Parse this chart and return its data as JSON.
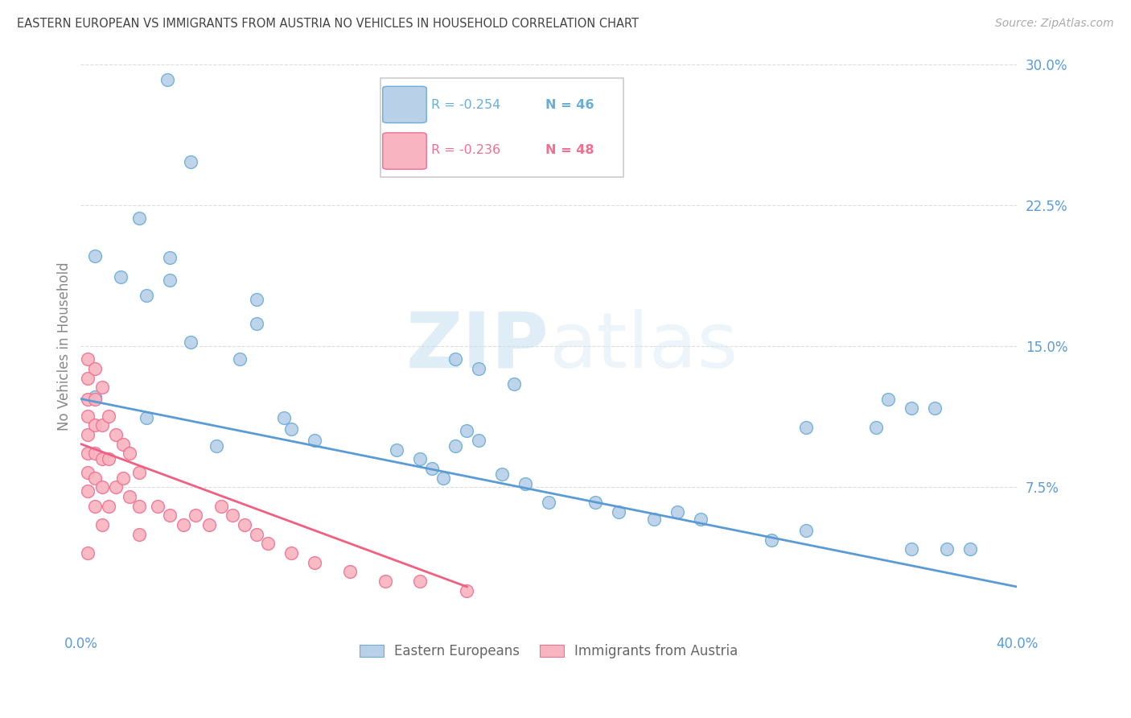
{
  "title": "EASTERN EUROPEAN VS IMMIGRANTS FROM AUSTRIA NO VEHICLES IN HOUSEHOLD CORRELATION CHART",
  "source": "Source: ZipAtlas.com",
  "ylabel": "No Vehicles in Household",
  "xlim": [
    0.0,
    0.4
  ],
  "ylim": [
    0.0,
    0.3
  ],
  "ytick_vals": [
    0.0,
    0.075,
    0.15,
    0.225,
    0.3
  ],
  "ytick_labels": [
    "",
    "7.5%",
    "15.0%",
    "22.5%",
    "30.0%"
  ],
  "xtick_vals": [
    0.0,
    0.1,
    0.2,
    0.3,
    0.4
  ],
  "xtick_labels": [
    "0.0%",
    "",
    "",
    "",
    "40.0%"
  ],
  "watermark_zip": "ZIP",
  "watermark_atlas": "atlas",
  "legend_blue_r": "R = -0.254",
  "legend_blue_n": "N = 46",
  "legend_pink_r": "R = -0.236",
  "legend_pink_n": "N = 48",
  "legend_blue_label": "Eastern Europeans",
  "legend_pink_label": "Immigrants from Austria",
  "blue_face": "#b8d0e8",
  "blue_edge": "#6aaed6",
  "pink_face": "#f8b4c0",
  "pink_edge": "#f07090",
  "line_blue": "#5b9bd5",
  "line_pink": "#f06080",
  "tick_color": "#5b9bd5",
  "ylabel_color": "#888888",
  "title_color": "#444444",
  "source_color": "#aaaaaa",
  "grid_color": "#dddddd",
  "bg_color": "#ffffff",
  "blue_line_x": [
    0.0,
    0.4
  ],
  "blue_line_y": [
    0.122,
    0.022
  ],
  "pink_line_x": [
    0.0,
    0.165
  ],
  "pink_line_y": [
    0.098,
    0.022
  ],
  "blue_x": [
    0.037,
    0.047,
    0.006,
    0.017,
    0.028,
    0.006,
    0.028,
    0.047,
    0.068,
    0.087,
    0.058,
    0.16,
    0.025,
    0.038,
    0.038,
    0.075,
    0.075,
    0.09,
    0.1,
    0.135,
    0.145,
    0.15,
    0.155,
    0.165,
    0.17,
    0.18,
    0.19,
    0.2,
    0.22,
    0.23,
    0.245,
    0.255,
    0.265,
    0.16,
    0.17,
    0.185,
    0.295,
    0.31,
    0.355,
    0.355,
    0.365,
    0.37,
    0.38,
    0.31,
    0.34,
    0.345
  ],
  "blue_y": [
    0.292,
    0.248,
    0.198,
    0.187,
    0.177,
    0.123,
    0.112,
    0.152,
    0.143,
    0.112,
    0.097,
    0.097,
    0.218,
    0.197,
    0.185,
    0.175,
    0.162,
    0.106,
    0.1,
    0.095,
    0.09,
    0.085,
    0.08,
    0.105,
    0.1,
    0.082,
    0.077,
    0.067,
    0.067,
    0.062,
    0.058,
    0.062,
    0.058,
    0.143,
    0.138,
    0.13,
    0.047,
    0.052,
    0.042,
    0.117,
    0.117,
    0.042,
    0.042,
    0.107,
    0.107,
    0.122
  ],
  "pink_x": [
    0.003,
    0.003,
    0.003,
    0.003,
    0.003,
    0.003,
    0.003,
    0.003,
    0.003,
    0.006,
    0.006,
    0.006,
    0.006,
    0.006,
    0.006,
    0.009,
    0.009,
    0.009,
    0.009,
    0.009,
    0.012,
    0.012,
    0.012,
    0.015,
    0.015,
    0.018,
    0.018,
    0.021,
    0.021,
    0.025,
    0.025,
    0.025,
    0.033,
    0.038,
    0.044,
    0.049,
    0.055,
    0.06,
    0.065,
    0.07,
    0.075,
    0.08,
    0.09,
    0.1,
    0.115,
    0.13,
    0.145,
    0.165
  ],
  "pink_y": [
    0.143,
    0.133,
    0.122,
    0.113,
    0.103,
    0.093,
    0.083,
    0.073,
    0.04,
    0.138,
    0.122,
    0.108,
    0.093,
    0.08,
    0.065,
    0.128,
    0.108,
    0.09,
    0.075,
    0.055,
    0.113,
    0.09,
    0.065,
    0.103,
    0.075,
    0.098,
    0.08,
    0.093,
    0.07,
    0.083,
    0.065,
    0.05,
    0.065,
    0.06,
    0.055,
    0.06,
    0.055,
    0.065,
    0.06,
    0.055,
    0.05,
    0.045,
    0.04,
    0.035,
    0.03,
    0.025,
    0.025,
    0.02
  ]
}
